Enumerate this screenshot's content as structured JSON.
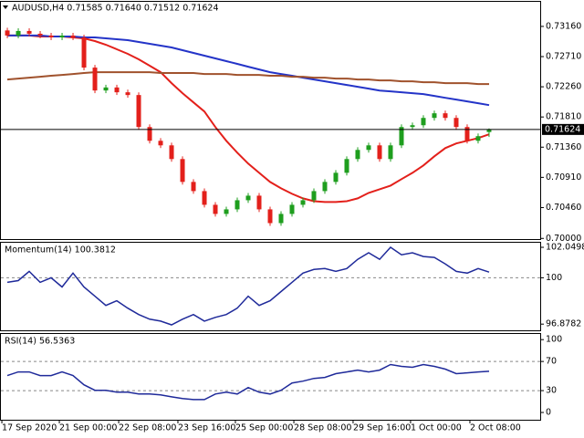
{
  "chart_data": [
    {
      "type": "candlestick",
      "title": "AUDUSD,H4 0.71585 0.71640 0.71512 0.71624",
      "open": [
        0.731,
        0.73024,
        0.73092,
        0.73051,
        0.73024,
        0.72996,
        0.73024,
        0.72996,
        0.72546,
        0.72205,
        0.7225,
        0.72178,
        0.72137,
        0.7166,
        0.71455,
        0.71387,
        0.71183,
        0.70842,
        0.70705,
        0.70501,
        0.70365,
        0.70433,
        0.70569,
        0.70637,
        0.70433,
        0.70228,
        0.70365,
        0.70501,
        0.70569,
        0.70705,
        0.70842,
        0.70978,
        0.71183,
        0.71319,
        0.71387,
        0.71183,
        0.71387,
        0.7166,
        0.71687,
        0.71796,
        0.71865,
        0.71796,
        0.7166,
        0.71455,
        0.71585
      ],
      "high": [
        0.7314,
        0.73132,
        0.73132,
        0.73091,
        0.73064,
        0.73064,
        0.73064,
        0.73036,
        0.72586,
        0.7229,
        0.7229,
        0.72218,
        0.72177,
        0.717,
        0.71495,
        0.71427,
        0.71223,
        0.70882,
        0.70745,
        0.70541,
        0.70473,
        0.70609,
        0.70677,
        0.70677,
        0.70473,
        0.70405,
        0.70541,
        0.70609,
        0.70745,
        0.70882,
        0.71018,
        0.71223,
        0.71359,
        0.71427,
        0.71427,
        0.71427,
        0.717,
        0.71727,
        0.71836,
        0.71905,
        0.71905,
        0.71836,
        0.717,
        0.71564,
        0.7164
      ],
      "low": [
        0.72984,
        0.72984,
        0.73011,
        0.72984,
        0.72956,
        0.72956,
        0.72956,
        0.72506,
        0.72165,
        0.72165,
        0.72138,
        0.72097,
        0.7162,
        0.71415,
        0.71347,
        0.71143,
        0.70802,
        0.70665,
        0.70461,
        0.70325,
        0.70325,
        0.70393,
        0.70529,
        0.70393,
        0.70188,
        0.70188,
        0.70325,
        0.70461,
        0.70529,
        0.70665,
        0.70802,
        0.70938,
        0.71143,
        0.71279,
        0.71143,
        0.71143,
        0.71347,
        0.7162,
        0.71647,
        0.71756,
        0.71756,
        0.7162,
        0.71415,
        0.71415,
        0.71512
      ],
      "close": [
        0.73024,
        0.73092,
        0.73051,
        0.73024,
        0.72996,
        0.73024,
        0.72996,
        0.72546,
        0.72205,
        0.7225,
        0.72178,
        0.72137,
        0.7166,
        0.71455,
        0.71387,
        0.71183,
        0.70842,
        0.70705,
        0.70501,
        0.70365,
        0.70433,
        0.70569,
        0.70637,
        0.70433,
        0.70228,
        0.70365,
        0.70501,
        0.70569,
        0.70705,
        0.70842,
        0.70978,
        0.71183,
        0.71319,
        0.71387,
        0.71183,
        0.71387,
        0.7166,
        0.71687,
        0.71796,
        0.71865,
        0.71796,
        0.7166,
        0.71455,
        0.71524,
        0.71624
      ],
      "up_color": "#1e9e1e",
      "down_color": "#e3201b",
      "lines": [
        {
          "color": "#e3201b",
          "values": [
            0.73024,
            0.73024,
            0.73024,
            0.7301,
            0.7301,
            0.7301,
            0.72996,
            0.72983,
            0.72942,
            0.72887,
            0.72819,
            0.72751,
            0.72669,
            0.72574,
            0.72478,
            0.72315,
            0.72165,
            0.72028,
            0.71892,
            0.7166,
            0.71455,
            0.71278,
            0.71115,
            0.70978,
            0.70842,
            0.70746,
            0.70665,
            0.70596,
            0.70555,
            0.70542,
            0.70542,
            0.70555,
            0.70596,
            0.70678,
            0.70733,
            0.70787,
            0.70883,
            0.70978,
            0.71087,
            0.71224,
            0.71346,
            0.71415,
            0.71455,
            0.71496,
            0.71551
          ]
        },
        {
          "color": "#2434c8",
          "values": [
            0.73024,
            0.73024,
            0.73024,
            0.73024,
            0.7301,
            0.7301,
            0.7301,
            0.72996,
            0.72996,
            0.72983,
            0.72969,
            0.72955,
            0.72928,
            0.72901,
            0.72874,
            0.72846,
            0.72805,
            0.72765,
            0.72724,
            0.72683,
            0.72642,
            0.72601,
            0.7256,
            0.72519,
            0.72478,
            0.72451,
            0.72424,
            0.72396,
            0.72369,
            0.72342,
            0.72315,
            0.72287,
            0.7226,
            0.72233,
            0.72205,
            0.72192,
            0.72178,
            0.72165,
            0.72151,
            0.72124,
            0.72096,
            0.72069,
            0.72042,
            0.72015,
            0.71987
          ]
        },
        {
          "color": "#a0522d",
          "values": [
            0.72369,
            0.72383,
            0.72396,
            0.7241,
            0.72424,
            0.72437,
            0.72451,
            0.72465,
            0.72478,
            0.72478,
            0.72478,
            0.72478,
            0.72478,
            0.72478,
            0.72465,
            0.72465,
            0.72465,
            0.72465,
            0.72451,
            0.72451,
            0.72451,
            0.72437,
            0.72437,
            0.72437,
            0.72424,
            0.72424,
            0.7241,
            0.7241,
            0.72396,
            0.72396,
            0.72383,
            0.72383,
            0.72369,
            0.72369,
            0.72355,
            0.72355,
            0.72342,
            0.72342,
            0.72328,
            0.72328,
            0.72315,
            0.72315,
            0.72315,
            0.72301,
            0.72301
          ]
        }
      ],
      "last_price": 0.71624,
      "ylim": [
        0.6999,
        0.7354
      ],
      "yticks": [
        {
          "value": 0.7316,
          "label": "0.73160"
        },
        {
          "value": 0.7271,
          "label": "0.72710"
        },
        {
          "value": 0.7226,
          "label": "0.72260"
        },
        {
          "value": 0.7181,
          "label": "0.71810"
        },
        {
          "value": 0.7136,
          "label": "0.71360"
        },
        {
          "value": 0.7091,
          "label": "0.70910"
        },
        {
          "value": 0.7046,
          "label": "0.70460"
        },
        {
          "value": 0.7,
          "label": "0.70000"
        }
      ]
    },
    {
      "type": "line",
      "title": "Momentum(14) 100.3812",
      "color": "#1f2a9a",
      "values": [
        99.69,
        99.81,
        100.43,
        99.69,
        100.0,
        99.38,
        100.31,
        99.38,
        98.76,
        98.14,
        98.45,
        97.95,
        97.52,
        97.21,
        97.08,
        96.83,
        97.21,
        97.52,
        97.08,
        97.33,
        97.52,
        97.95,
        98.76,
        98.14,
        98.45,
        99.07,
        99.69,
        100.31,
        100.56,
        100.62,
        100.43,
        100.62,
        101.24,
        101.68,
        101.24,
        102.05,
        101.55,
        101.68,
        101.43,
        101.37,
        100.93,
        100.43,
        100.31,
        100.62,
        100.3812
      ],
      "levels": [
        100
      ],
      "ylim": [
        96.46,
        102.42
      ],
      "yticks": [
        102.0498,
        100,
        96.8782
      ]
    },
    {
      "type": "line",
      "title": "RSI(14) 56.5363",
      "color": "#1f2a9a",
      "values": [
        50.6,
        55.7,
        55.7,
        50.6,
        50.6,
        55.7,
        50.6,
        38.0,
        30.4,
        30.4,
        27.8,
        27.8,
        25.3,
        25.3,
        24.1,
        21.5,
        19.0,
        17.7,
        17.7,
        25.3,
        27.8,
        25.3,
        34.2,
        27.8,
        25.3,
        30.4,
        40.5,
        43.0,
        46.8,
        48.1,
        53.2,
        55.7,
        58.2,
        55.7,
        58.2,
        65.8,
        63.3,
        62.0,
        65.8,
        63.3,
        59.5,
        53.2,
        54.4,
        55.7,
        56.5363
      ],
      "levels": [
        70,
        30
      ],
      "ylim": [
        -10,
        109
      ],
      "yticks": [
        100,
        70,
        30,
        0
      ],
      "xlim": [
        -0.67,
        48.67
      ],
      "xticks": [
        {
          "value": -0.5,
          "label": "17 Sep 2020"
        },
        {
          "value": 4.75,
          "label": "21 Sep 00:00"
        },
        {
          "value": 10.17,
          "label": "22 Sep 08:00"
        },
        {
          "value": 15.58,
          "label": "23 Sep 16:00"
        },
        {
          "value": 20.83,
          "label": "25 Sep 00:00"
        },
        {
          "value": 26.17,
          "label": "28 Sep 08:00"
        },
        {
          "value": 31.58,
          "label": "29 Sep 16:00"
        },
        {
          "value": 36.83,
          "label": "1 Oct 00:00"
        },
        {
          "value": 42.25,
          "label": "2 Oct 08:00"
        }
      ]
    }
  ]
}
